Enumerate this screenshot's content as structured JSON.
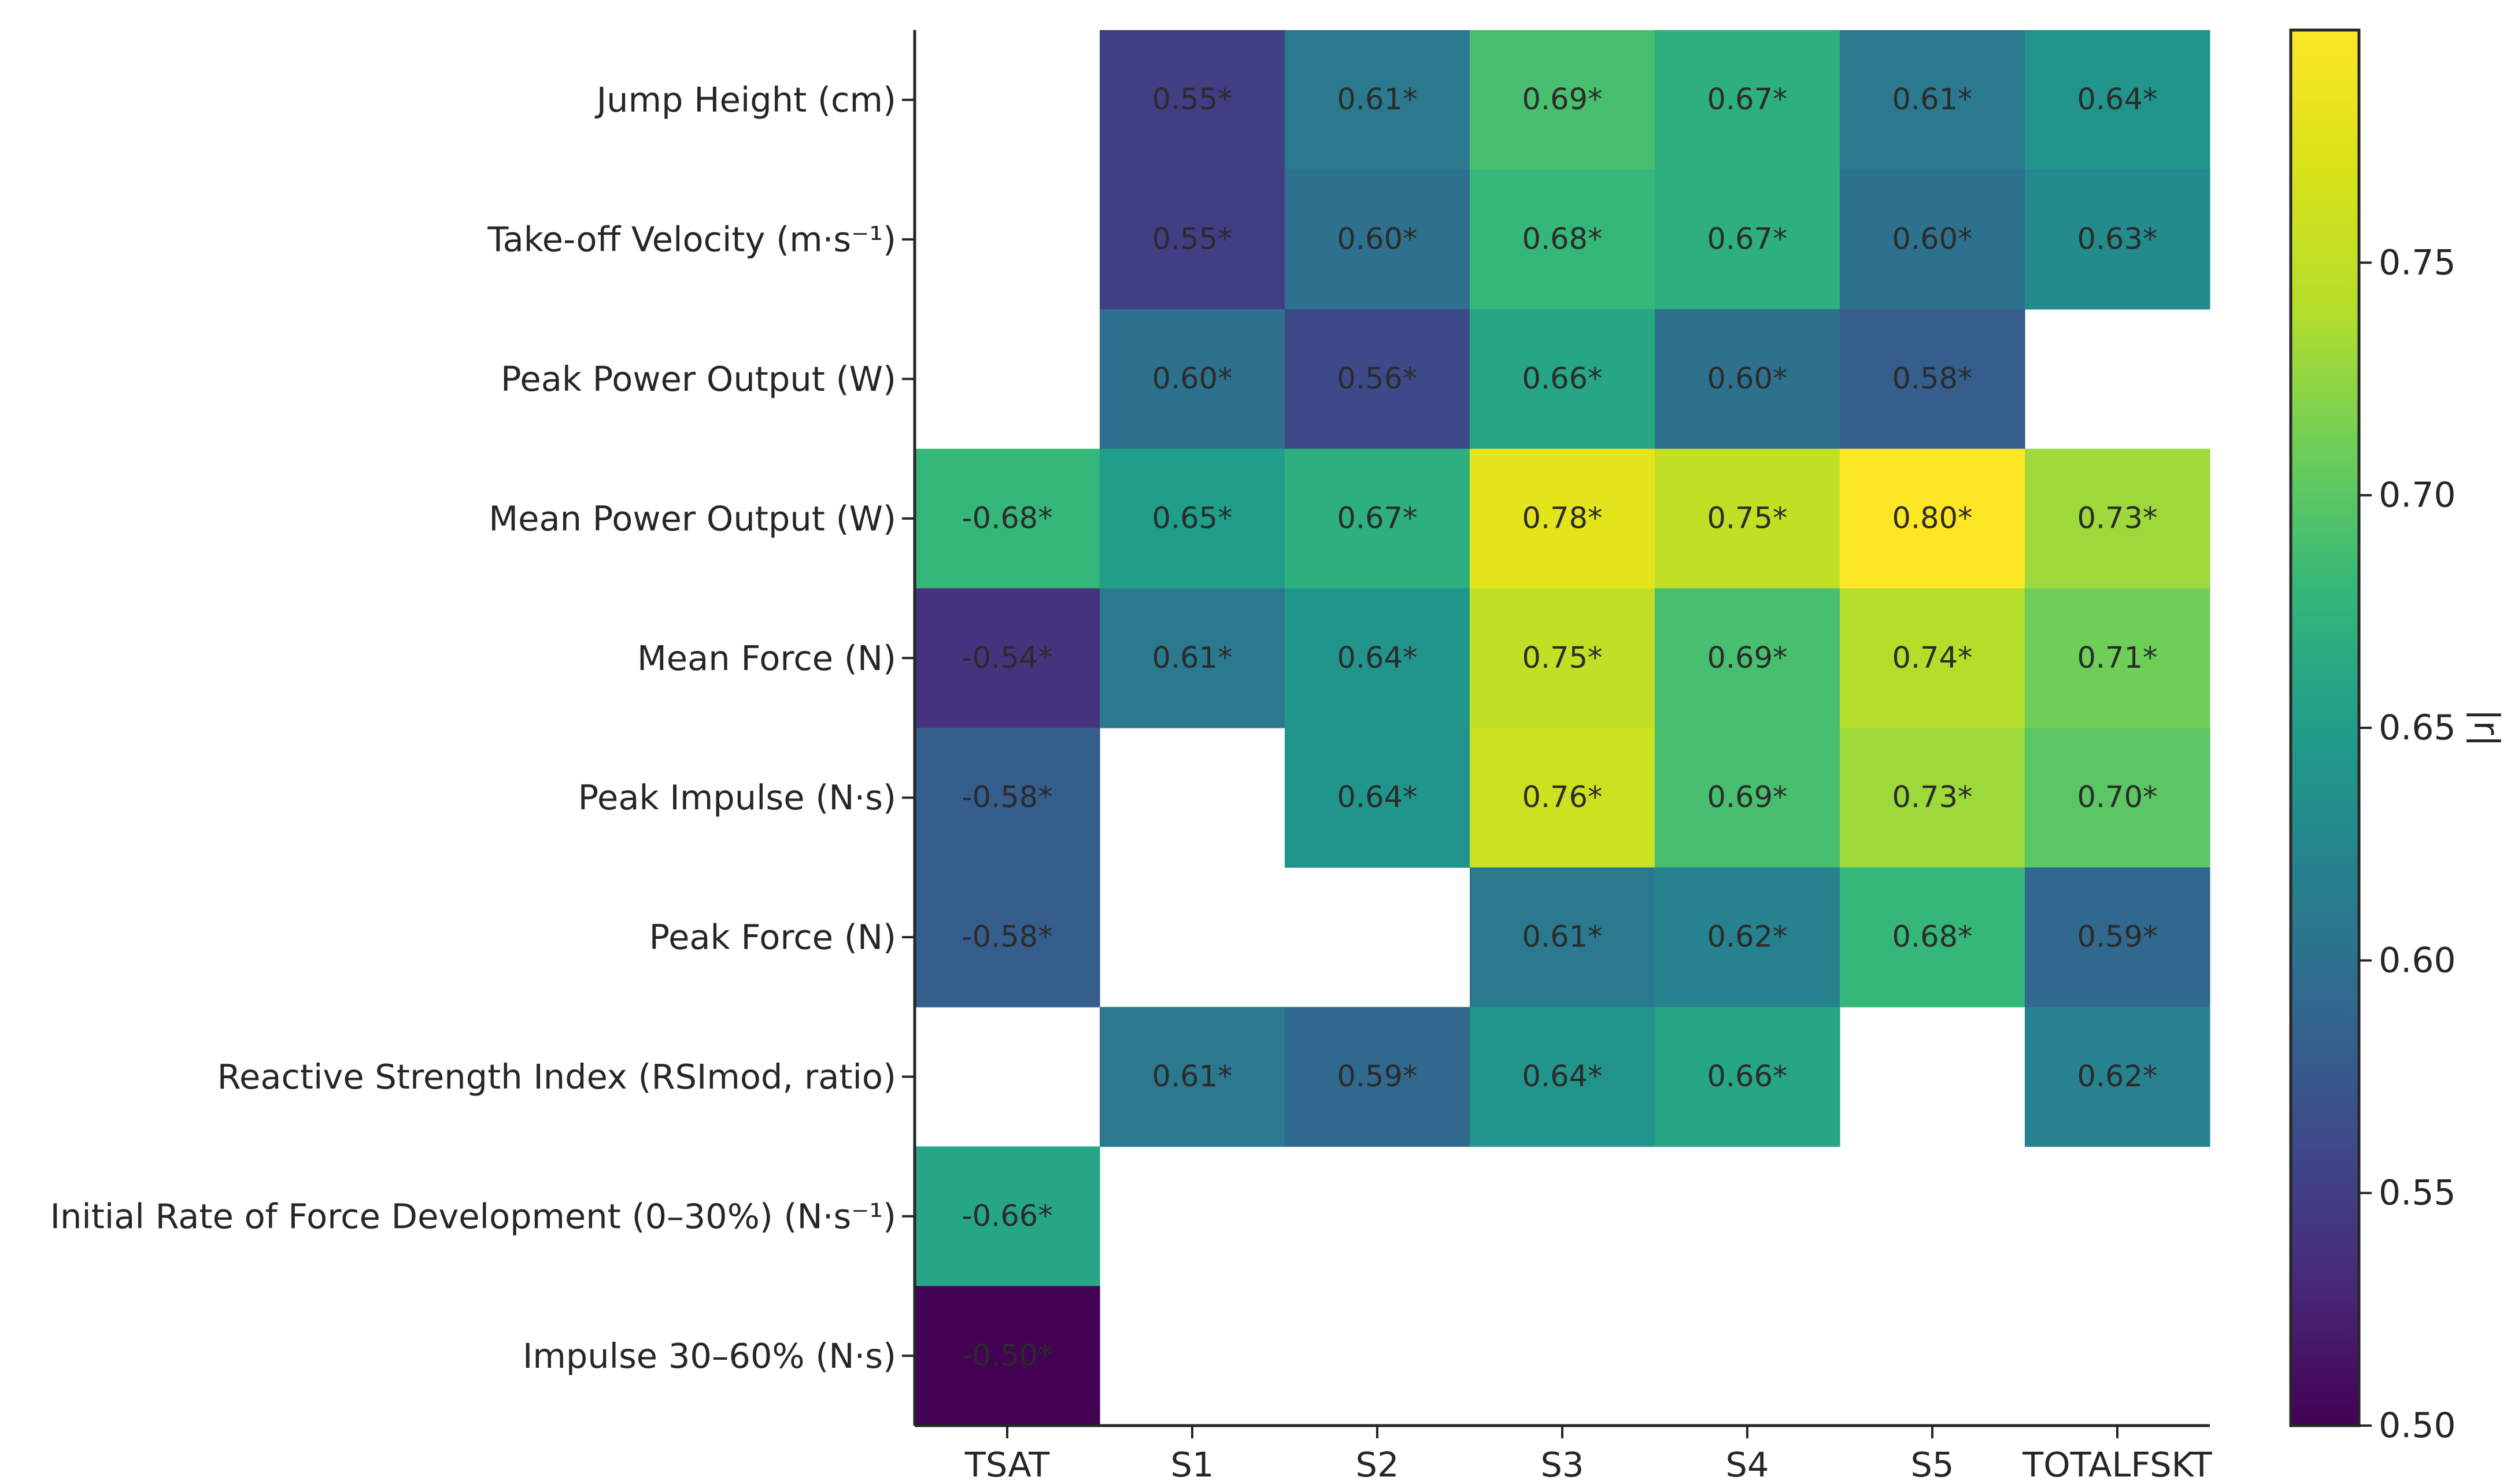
{
  "chart_data": {
    "type": "heatmap",
    "columns": [
      "TSAT",
      "S1",
      "S2",
      "S3",
      "S4",
      "S5",
      "TOTALFSKT"
    ],
    "rows": [
      "Jump Height (cm)",
      "Take-off Velocity (m·s⁻¹)",
      "Peak Power Output (W)",
      "Mean Power Output (W)",
      "Mean Force (N)",
      "Peak Impulse (N·s)",
      "Peak Force (N)",
      "Reactive Strength Index (RSImod, ratio)",
      "Initial Rate of Force Development (0–30%) (N·s⁻¹)",
      "Impulse 30–60% (N·s)"
    ],
    "cells": [
      [
        null,
        0.55,
        0.61,
        0.69,
        0.67,
        0.61,
        0.64
      ],
      [
        null,
        0.55,
        0.6,
        0.68,
        0.67,
        0.6,
        0.63
      ],
      [
        null,
        0.6,
        0.56,
        0.66,
        0.6,
        0.58,
        null
      ],
      [
        -0.68,
        0.65,
        0.67,
        0.78,
        0.75,
        0.8,
        0.73
      ],
      [
        -0.54,
        0.61,
        0.64,
        0.75,
        0.69,
        0.74,
        0.71
      ],
      [
        -0.58,
        null,
        0.64,
        0.76,
        0.69,
        0.73,
        0.7
      ],
      [
        -0.58,
        null,
        null,
        0.61,
        0.62,
        0.68,
        0.59
      ],
      [
        null,
        0.61,
        0.59,
        0.64,
        0.66,
        null,
        0.62
      ],
      [
        -0.66,
        null,
        null,
        null,
        null,
        null,
        null
      ],
      [
        -0.5,
        null,
        null,
        null,
        null,
        null,
        null
      ]
    ],
    "labels": [
      [
        null,
        "0.55*",
        "0.61*",
        "0.69*",
        "0.67*",
        "0.61*",
        "0.64*"
      ],
      [
        null,
        "0.55*",
        "0.60*",
        "0.68*",
        "0.67*",
        "0.60*",
        "0.63*"
      ],
      [
        null,
        "0.60*",
        "0.56*",
        "0.66*",
        "0.60*",
        "0.58*",
        null
      ],
      [
        "-0.68*",
        "0.65*",
        "0.67*",
        "0.78*",
        "0.75*",
        "0.80*",
        "0.73*"
      ],
      [
        "-0.54*",
        "0.61*",
        "0.64*",
        "0.75*",
        "0.69*",
        "0.74*",
        "0.71*"
      ],
      [
        "-0.58*",
        null,
        "0.64*",
        "0.76*",
        "0.69*",
        "0.73*",
        "0.70*"
      ],
      [
        "-0.58*",
        null,
        null,
        "0.61*",
        "0.62*",
        "0.68*",
        "0.59*"
      ],
      [
        null,
        "0.61*",
        "0.59*",
        "0.64*",
        "0.66*",
        null,
        "0.62*"
      ],
      [
        "-0.66*",
        null,
        null,
        null,
        null,
        null,
        null
      ],
      [
        "-0.50*",
        null,
        null,
        null,
        null,
        null,
        null
      ]
    ],
    "color_by": "absolute value",
    "colormap": "viridis",
    "colorbar": {
      "label": "|r|",
      "range": [
        0.5,
        0.8
      ],
      "ticks": [
        "0.50",
        "0.55",
        "0.60",
        "0.65",
        "0.70",
        "0.75"
      ]
    }
  }
}
